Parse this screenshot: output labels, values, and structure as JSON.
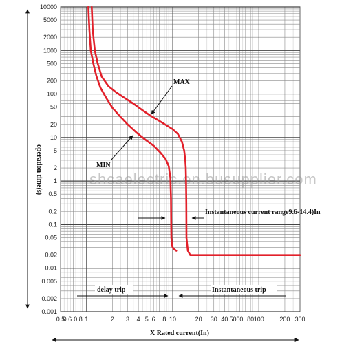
{
  "chart_data": {
    "type": "line",
    "title": "",
    "xlabel": "X Rated current(In)",
    "ylabel": "operation time(s)",
    "x_scale": "log",
    "y_scale": "log",
    "xlim": [
      0.5,
      300
    ],
    "ylim": [
      0.001,
      10000
    ],
    "grid": true,
    "x_ticks": [
      "0.5",
      "0.6",
      "0.8",
      "1",
      "2",
      "3",
      "4",
      "5",
      "6",
      "8",
      "10",
      "20",
      "30",
      "40",
      "50",
      "60",
      "80",
      "100",
      "200",
      "300"
    ],
    "y_ticks": [
      "10000",
      "5000",
      "2000",
      "1000",
      "500",
      "200",
      "100",
      "50",
      "20",
      "10",
      "5",
      "2",
      "1",
      "0.5",
      "0.2",
      "0.1",
      "0.05",
      "0.02",
      "0.01",
      "0.005",
      "0.002",
      "0.001"
    ],
    "series": [
      {
        "name": "MAX",
        "color": "#e2202a",
        "x": [
          1.15,
          1.18,
          1.25,
          1.35,
          1.5,
          1.8,
          2.2,
          2.8,
          3.5,
          4.5,
          5.5,
          7.0,
          8.5,
          10.0,
          11.5,
          12.8,
          13.6,
          14.0,
          14.2,
          14.3,
          14.4,
          14.45,
          15,
          16,
          18,
          25,
          40,
          80,
          150,
          300
        ],
        "y": [
          10000,
          3000,
          1000,
          500,
          250,
          150,
          110,
          80,
          60,
          42,
          32,
          24,
          19,
          15.5,
          12,
          8,
          5,
          3,
          2,
          1,
          0.3,
          0.05,
          0.025,
          0.02,
          0.02,
          0.02,
          0.02,
          0.02,
          0.02,
          0.02
        ]
      },
      {
        "name": "MIN",
        "color": "#e2202a",
        "x": [
          1.05,
          1.08,
          1.12,
          1.2,
          1.3,
          1.45,
          1.7,
          2.0,
          2.4,
          3.0,
          3.8,
          4.8,
          6.0,
          7.2,
          8.3,
          9.0,
          9.4,
          9.55,
          9.6,
          9.65,
          9.8,
          10.2,
          11
        ],
        "y": [
          10000,
          3000,
          1000,
          500,
          260,
          140,
          80,
          48,
          32,
          20,
          13,
          9,
          6.5,
          4.5,
          3.2,
          2.2,
          1.2,
          0.4,
          0.1,
          0.05,
          0.033,
          0.028,
          0.025
        ]
      }
    ],
    "annotations": [
      {
        "text": "MAX",
        "x": 4.8,
        "y": 30
      },
      {
        "text": "MIN",
        "x": 1.8,
        "y": 8
      },
      {
        "text": "Instantaneous current range9.6-14.4)In",
        "arrows": [
          7.8,
          16
        ]
      },
      {
        "text": "delay trip",
        "arrows": [
          1.0,
          8.6
        ],
        "y": 0.0015
      },
      {
        "text": "Instantaneous trip",
        "arrows": [
          11.5,
          300
        ],
        "y": 0.0015
      }
    ]
  },
  "watermark": "shcaelectric.en.busupplier.com"
}
